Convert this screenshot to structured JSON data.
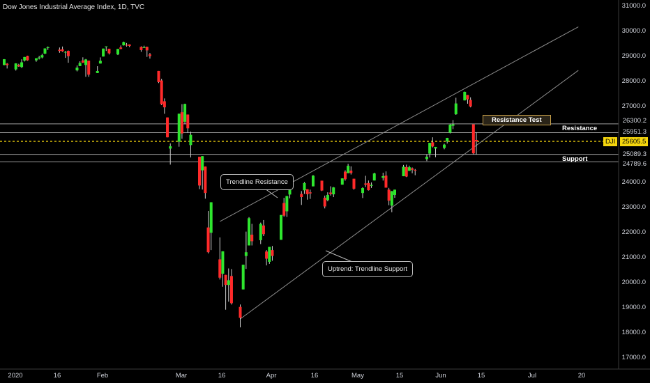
{
  "title": "Dow Jones Industrial Average Index, 1D, TVC",
  "chart_data": {
    "type": "candlestick",
    "y_ticks": [
      "31000.0",
      "30000.0",
      "29000.0",
      "28000.0",
      "27000.0",
      "24000.0",
      "23000.0",
      "22000.0",
      "21000.0",
      "20000.0",
      "19000.0",
      "18000.0",
      "17000.0"
    ],
    "x_ticks": [
      "2020",
      "16",
      "Feb",
      "Mar",
      "16",
      "Apr",
      "16",
      "May",
      "15",
      "Jun",
      "15",
      "Jul",
      "20"
    ],
    "price_levels": [
      {
        "value": 26300.2,
        "label": "26300.2"
      },
      {
        "value": 25951.3,
        "label": "25951.3"
      },
      {
        "value": 25089.3,
        "label": "25089.3"
      },
      {
        "value": 24789.6,
        "label": "24789.6"
      }
    ],
    "current_price": {
      "symbol": "DJI",
      "value": 25605.5,
      "label": "25605.5"
    },
    "horizontal_labels": {
      "resistance": "Resistance",
      "support": "Support"
    },
    "resistance_test_label": "Resistance Test",
    "annotations": [
      "Trendline Resistance",
      "Uptrend: Trendline Support"
    ],
    "candles": [
      {
        "d": "2020-01-02",
        "o": 28638,
        "h": 28872,
        "l": 28627,
        "c": 28868
      },
      {
        "d": "2020-01-03",
        "o": 28690,
        "h": 28716,
        "l": 28500,
        "c": 28634
      },
      {
        "d": "2020-01-06",
        "o": 28465,
        "h": 28708,
        "l": 28418,
        "c": 28703
      },
      {
        "d": "2020-01-07",
        "o": 28639,
        "h": 28685,
        "l": 28565,
        "c": 28583
      },
      {
        "d": "2020-01-08",
        "o": 28557,
        "h": 28866,
        "l": 28522,
        "c": 28745
      },
      {
        "d": "2020-01-09",
        "o": 28816,
        "h": 28958,
        "l": 28779,
        "c": 28957
      },
      {
        "d": "2020-01-10",
        "o": 29000,
        "h": 29009,
        "l": 28809,
        "c": 28824
      },
      {
        "d": "2020-01-13",
        "o": 28823,
        "h": 28907,
        "l": 28767,
        "c": 28907
      },
      {
        "d": "2020-01-14",
        "o": 28901,
        "h": 29001,
        "l": 28859,
        "c": 28940
      },
      {
        "d": "2020-01-15",
        "o": 28940,
        "h": 29087,
        "l": 28903,
        "c": 29030
      },
      {
        "d": "2020-01-16",
        "o": 29090,
        "h": 29301,
        "l": 29072,
        "c": 29298
      },
      {
        "d": "2020-01-17",
        "o": 29313,
        "h": 29374,
        "l": 29238,
        "c": 29348
      },
      {
        "d": "2020-01-21",
        "o": 29248,
        "h": 29334,
        "l": 29124,
        "c": 29196
      },
      {
        "d": "2020-01-22",
        "o": 29263,
        "h": 29373,
        "l": 29162,
        "c": 29186
      },
      {
        "d": "2020-01-23",
        "o": 29138,
        "h": 29196,
        "l": 28923,
        "c": 29160
      },
      {
        "d": "2020-01-24",
        "o": 29200,
        "h": 29215,
        "l": 28728,
        "c": 28990
      },
      {
        "d": "2020-01-27",
        "o": 28425,
        "h": 28620,
        "l": 28384,
        "c": 28535
      },
      {
        "d": "2020-01-28",
        "o": 28596,
        "h": 28787,
        "l": 28594,
        "c": 28723
      },
      {
        "d": "2020-01-29",
        "o": 28820,
        "h": 28944,
        "l": 28719,
        "c": 28734
      },
      {
        "d": "2020-01-30",
        "o": 28640,
        "h": 28879,
        "l": 28169,
        "c": 28859
      },
      {
        "d": "2020-01-31",
        "o": 28813,
        "h": 28813,
        "l": 28169,
        "c": 28256
      },
      {
        "d": "2020-02-03",
        "o": 28319,
        "h": 28592,
        "l": 28319,
        "c": 28400
      },
      {
        "d": "2020-02-04",
        "o": 28697,
        "h": 28941,
        "l": 28697,
        "c": 28807
      },
      {
        "d": "2020-02-05",
        "o": 28976,
        "h": 29291,
        "l": 28976,
        "c": 29291
      },
      {
        "d": "2020-02-06",
        "o": 29376,
        "h": 29380,
        "l": 29196,
        "c": 29380
      },
      {
        "d": "2020-02-07",
        "o": 29286,
        "h": 29286,
        "l": 29057,
        "c": 29103
      },
      {
        "d": "2020-02-10",
        "o": 29059,
        "h": 29277,
        "l": 29034,
        "c": 29276
      },
      {
        "d": "2020-02-11",
        "o": 29336,
        "h": 29415,
        "l": 29266,
        "c": 29277
      },
      {
        "d": "2020-02-12",
        "o": 29421,
        "h": 29568,
        "l": 29409,
        "c": 29551
      },
      {
        "d": "2020-02-13",
        "o": 29439,
        "h": 29511,
        "l": 29370,
        "c": 29424
      },
      {
        "d": "2020-02-14",
        "o": 29455,
        "h": 29458,
        "l": 29350,
        "c": 29398
      },
      {
        "d": "2020-02-18",
        "o": 29356,
        "h": 29382,
        "l": 29163,
        "c": 29232
      },
      {
        "d": "2020-02-19",
        "o": 29315,
        "h": 29406,
        "l": 29315,
        "c": 29348
      },
      {
        "d": "2020-02-20",
        "o": 29361,
        "h": 29370,
        "l": 28961,
        "c": 29219
      },
      {
        "d": "2020-02-21",
        "o": 29060,
        "h": 29118,
        "l": 28892,
        "c": 28992
      },
      {
        "d": "2020-02-24",
        "o": 28402,
        "h": 28402,
        "l": 27921,
        "c": 27961
      },
      {
        "d": "2020-02-25",
        "o": 28024,
        "h": 28088,
        "l": 27044,
        "c": 27081
      },
      {
        "d": "2020-02-26",
        "o": 27198,
        "h": 27311,
        "l": 26700,
        "c": 26957
      },
      {
        "d": "2020-02-27",
        "o": 26555,
        "h": 26555,
        "l": 25762,
        "c": 25766
      },
      {
        "d": "2020-02-28",
        "o": 25317,
        "h": 25526,
        "l": 24681,
        "c": 25409
      },
      {
        "d": "2020-03-02",
        "o": 25590,
        "h": 26706,
        "l": 25392,
        "c": 26703
      },
      {
        "d": "2020-03-03",
        "o": 26763,
        "h": 27084,
        "l": 25707,
        "c": 25917
      },
      {
        "d": "2020-03-04",
        "o": 26384,
        "h": 27102,
        "l": 26287,
        "c": 27091
      },
      {
        "d": "2020-03-05",
        "o": 26671,
        "h": 26671,
        "l": 25943,
        "c": 26122
      },
      {
        "d": "2020-03-06",
        "o": 25457,
        "h": 25994,
        "l": 24965,
        "c": 25865
      },
      {
        "d": "2020-03-09",
        "o": 24992,
        "h": 24992,
        "l": 23707,
        "c": 23851
      },
      {
        "d": "2020-03-10",
        "o": 24453,
        "h": 25020,
        "l": 23690,
        "c": 25018
      },
      {
        "d": "2020-03-11",
        "o": 24604,
        "h": 24604,
        "l": 23328,
        "c": 23553
      },
      {
        "d": "2020-03-12",
        "o": 22184,
        "h": 22837,
        "l": 21154,
        "c": 21200
      },
      {
        "d": "2020-03-13",
        "o": 21973,
        "h": 23186,
        "l": 21285,
        "c": 23185
      },
      {
        "d": "2020-03-16",
        "o": 20917,
        "h": 21789,
        "l": 20116,
        "c": 20189
      },
      {
        "d": "2020-03-17",
        "o": 20345,
        "h": 21237,
        "l": 19829,
        "c": 21237
      },
      {
        "d": "2020-03-18",
        "o": 20300,
        "h": 20300,
        "l": 18917,
        "c": 19899
      },
      {
        "d": "2020-03-19",
        "o": 19900,
        "h": 20556,
        "l": 19235,
        "c": 20087
      },
      {
        "d": "2020-03-20",
        "o": 20254,
        "h": 20532,
        "l": 19121,
        "c": 19174
      },
      {
        "d": "2020-03-23",
        "o": 19028,
        "h": 19122,
        "l": 18213,
        "c": 18592
      },
      {
        "d": "2020-03-24",
        "o": 19722,
        "h": 20704,
        "l": 19722,
        "c": 20704
      },
      {
        "d": "2020-03-25",
        "o": 21050,
        "h": 22019,
        "l": 20538,
        "c": 21200
      },
      {
        "d": "2020-03-26",
        "o": 21469,
        "h": 22596,
        "l": 21469,
        "c": 22552
      },
      {
        "d": "2020-03-27",
        "o": 21898,
        "h": 22327,
        "l": 21469,
        "c": 21637
      },
      {
        "d": "2020-03-30",
        "o": 21678,
        "h": 22378,
        "l": 21523,
        "c": 22327
      },
      {
        "d": "2020-03-31",
        "o": 22263,
        "h": 22480,
        "l": 21842,
        "c": 21917
      },
      {
        "d": "2020-04-01",
        "o": 21227,
        "h": 21285,
        "l": 20676,
        "c": 20943
      },
      {
        "d": "2020-04-02",
        "o": 20819,
        "h": 21413,
        "l": 20736,
        "c": 21413
      },
      {
        "d": "2020-04-03",
        "o": 21285,
        "h": 21447,
        "l": 20863,
        "c": 21052
      },
      {
        "d": "2020-04-06",
        "o": 21693,
        "h": 22680,
        "l": 21693,
        "c": 22680
      },
      {
        "d": "2020-04-07",
        "o": 23156,
        "h": 23360,
        "l": 22612,
        "c": 22654
      },
      {
        "d": "2020-04-08",
        "o": 22825,
        "h": 23433,
        "l": 22603,
        "c": 23433
      },
      {
        "d": "2020-04-09",
        "o": 23492,
        "h": 23859,
        "l": 23342,
        "c": 23719
      },
      {
        "d": "2020-04-13",
        "o": 23516,
        "h": 23630,
        "l": 23079,
        "c": 23391
      },
      {
        "d": "2020-04-14",
        "o": 23660,
        "h": 23987,
        "l": 23518,
        "c": 23949
      },
      {
        "d": "2020-04-15",
        "o": 23702,
        "h": 23702,
        "l": 23289,
        "c": 23504
      },
      {
        "d": "2020-04-16",
        "o": 23579,
        "h": 23688,
        "l": 23318,
        "c": 23537
      },
      {
        "d": "2020-04-17",
        "o": 23817,
        "h": 24264,
        "l": 23817,
        "c": 24242
      },
      {
        "d": "2020-04-20",
        "o": 24043,
        "h": 24043,
        "l": 23631,
        "c": 23650
      },
      {
        "d": "2020-04-21",
        "o": 23366,
        "h": 23450,
        "l": 22941,
        "c": 23018
      },
      {
        "d": "2020-04-22",
        "o": 23270,
        "h": 23580,
        "l": 23223,
        "c": 23475
      },
      {
        "d": "2020-04-23",
        "o": 23570,
        "h": 23819,
        "l": 23451,
        "c": 23515
      },
      {
        "d": "2020-04-24",
        "o": 23500,
        "h": 23790,
        "l": 23390,
        "c": 23775
      },
      {
        "d": "2020-04-27",
        "o": 23884,
        "h": 24136,
        "l": 23884,
        "c": 24134
      },
      {
        "d": "2020-04-28",
        "o": 24400,
        "h": 24454,
        "l": 24043,
        "c": 24101
      },
      {
        "d": "2020-04-29",
        "o": 24341,
        "h": 24712,
        "l": 24341,
        "c": 24634
      },
      {
        "d": "2020-04-30",
        "o": 24443,
        "h": 24611,
        "l": 24287,
        "c": 24346
      },
      {
        "d": "2020-05-01",
        "o": 24120,
        "h": 24120,
        "l": 23683,
        "c": 23724
      },
      {
        "d": "2020-05-04",
        "o": 23553,
        "h": 23780,
        "l": 23354,
        "c": 23750
      },
      {
        "d": "2020-05-05",
        "o": 23932,
        "h": 24237,
        "l": 23794,
        "c": 23883
      },
      {
        "d": "2020-05-06",
        "o": 23950,
        "h": 24049,
        "l": 23651,
        "c": 23665
      },
      {
        "d": "2020-05-07",
        "o": 23838,
        "h": 23973,
        "l": 23755,
        "c": 23876
      },
      {
        "d": "2020-05-08",
        "o": 24050,
        "h": 24359,
        "l": 24050,
        "c": 24331
      },
      {
        "d": "2020-05-11",
        "o": 24156,
        "h": 24358,
        "l": 24047,
        "c": 24222
      },
      {
        "d": "2020-05-12",
        "o": 24244,
        "h": 24412,
        "l": 23764,
        "c": 23765
      },
      {
        "d": "2020-05-13",
        "o": 23689,
        "h": 23757,
        "l": 23067,
        "c": 23248
      },
      {
        "d": "2020-05-14",
        "o": 23050,
        "h": 23633,
        "l": 22790,
        "c": 23626
      },
      {
        "d": "2020-05-15",
        "o": 23475,
        "h": 23686,
        "l": 23361,
        "c": 23686
      },
      {
        "d": "2020-05-18",
        "o": 24220,
        "h": 24669,
        "l": 24220,
        "c": 24597
      },
      {
        "d": "2020-05-19",
        "o": 24584,
        "h": 24679,
        "l": 24186,
        "c": 24207
      },
      {
        "d": "2020-05-20",
        "o": 24434,
        "h": 24639,
        "l": 24433,
        "c": 24576
      },
      {
        "d": "2020-05-21",
        "o": 24530,
        "h": 24569,
        "l": 24336,
        "c": 24474
      },
      {
        "d": "2020-05-22",
        "o": 24468,
        "h": 24507,
        "l": 24259,
        "c": 24465
      },
      {
        "d": "2020-05-26",
        "o": 24900,
        "h": 25082,
        "l": 24823,
        "c": 24995
      },
      {
        "d": "2020-05-27",
        "o": 25117,
        "h": 25548,
        "l": 24962,
        "c": 25548
      },
      {
        "d": "2020-05-28",
        "o": 25566,
        "h": 25766,
        "l": 25366,
        "c": 25401
      },
      {
        "d": "2020-05-29",
        "o": 25320,
        "h": 25385,
        "l": 24974,
        "c": 25383
      },
      {
        "d": "2020-06-01",
        "o": 25343,
        "h": 25512,
        "l": 25290,
        "c": 25475
      },
      {
        "d": "2020-06-02",
        "o": 25600,
        "h": 25745,
        "l": 25519,
        "c": 25742
      },
      {
        "d": "2020-06-03",
        "o": 25950,
        "h": 26304,
        "l": 25920,
        "c": 26270
      },
      {
        "d": "2020-06-04",
        "o": 26225,
        "h": 26453,
        "l": 26092,
        "c": 26282
      },
      {
        "d": "2020-06-05",
        "o": 26682,
        "h": 27338,
        "l": 26658,
        "c": 27111
      },
      {
        "d": "2020-06-08",
        "o": 27232,
        "h": 27580,
        "l": 27232,
        "c": 27572
      },
      {
        "d": "2020-06-09",
        "o": 27447,
        "h": 27447,
        "l": 27100,
        "c": 27272
      },
      {
        "d": "2020-06-10",
        "o": 27251,
        "h": 27354,
        "l": 26956,
        "c": 26990
      },
      {
        "d": "2020-06-11",
        "o": 26282,
        "h": 26282,
        "l": 25082,
        "c": 25128
      },
      {
        "d": "2020-06-12",
        "o": 25659,
        "h": 25964,
        "l": 25080,
        "c": 25605
      }
    ]
  }
}
